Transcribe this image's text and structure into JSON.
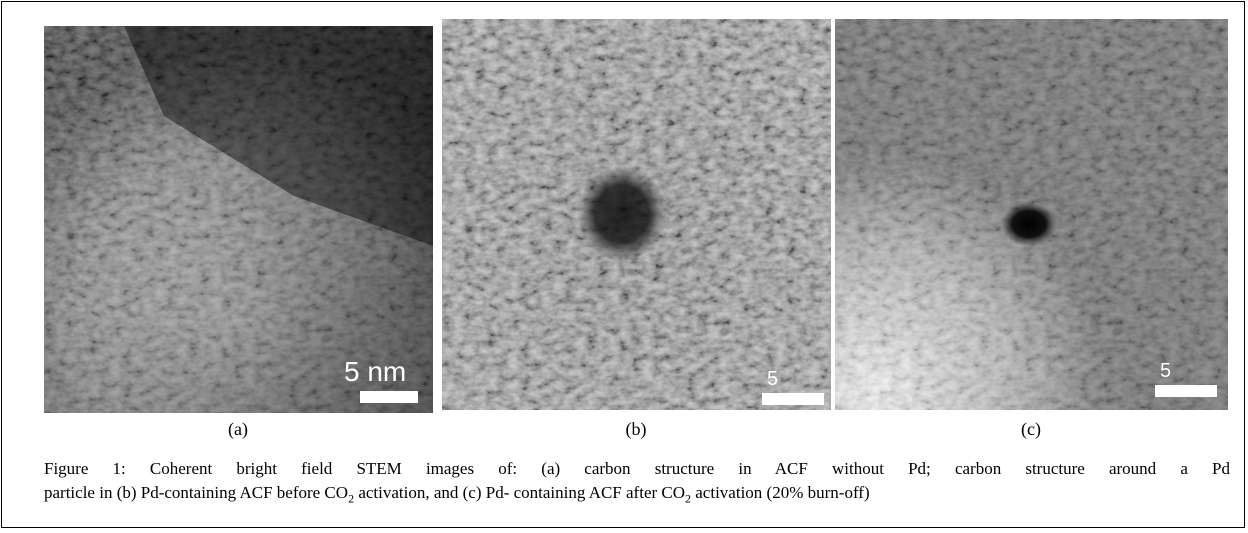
{
  "figure": {
    "panels": [
      {
        "label": "(a)",
        "scale_bar": "5 nm"
      },
      {
        "label": "(b)",
        "scale_bar": "5"
      },
      {
        "label": "(c)",
        "scale_bar": "5"
      }
    ],
    "caption": {
      "line1": "Figure 1: Coherent bright field STEM images of: (a) carbon structure in ACF without Pd; carbon structure around a Pd",
      "line2": [
        "particle in (b) Pd-containing ACF before CO",
        "2",
        " activation, and (c) Pd- containing ACF after CO",
        "2",
        " activation (20% burn-off)"
      ]
    }
  }
}
